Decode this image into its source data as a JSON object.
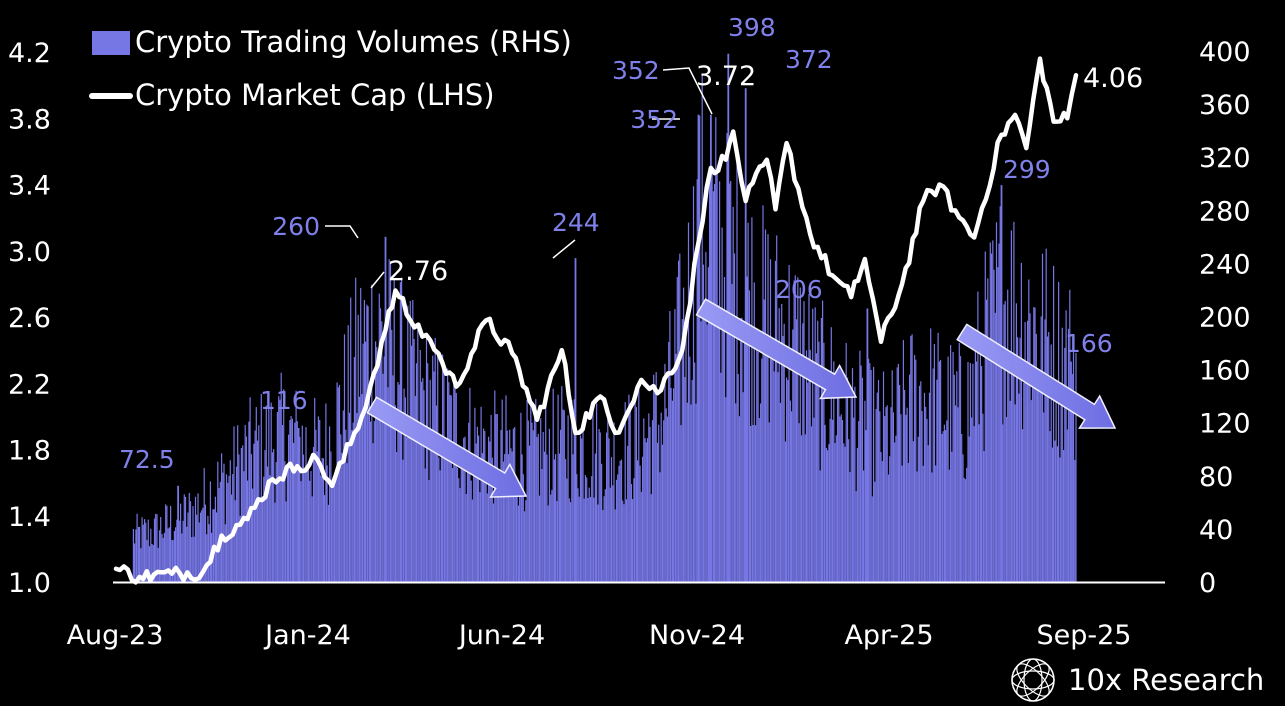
{
  "chart_data": {
    "type": "bar+line",
    "title": "",
    "legend": {
      "placement": "top-left",
      "entries": [
        {
          "label": "Crypto Trading Volumes (RHS)",
          "kind": "bar",
          "color": "#7676e4"
        },
        {
          "label": "Crypto Market Cap (LHS)",
          "kind": "line",
          "color": "#ffffff"
        }
      ]
    },
    "x_tick_labels": [
      "Aug-23",
      "Jan-24",
      "Jun-24",
      "Nov-24",
      "Apr-25",
      "Sep-25"
    ],
    "y_left": {
      "label": "",
      "range": [
        1.0,
        4.2
      ],
      "ticks": [
        "1.0",
        "1.4",
        "1.8",
        "2.2",
        "2.6",
        "3.0",
        "3.4",
        "3.8",
        "4.2"
      ]
    },
    "y_right": {
      "label": "",
      "range": [
        0,
        400
      ],
      "ticks": [
        "0",
        "40",
        "80",
        "120",
        "160",
        "200",
        "240",
        "280",
        "320",
        "360",
        "400"
      ]
    },
    "series": [
      {
        "name": "Crypto Trading Volumes (RHS)",
        "axis": "right",
        "type": "bar",
        "color": "#7676e4",
        "keypoints": [
          {
            "date": "2023-08-15",
            "value": 35
          },
          {
            "date": "2023-09-01",
            "value": 38
          },
          {
            "date": "2023-09-15",
            "value": 45
          },
          {
            "date": "2023-10-01",
            "value": 52
          },
          {
            "date": "2023-10-15",
            "value": 65
          },
          {
            "date": "2023-11-01",
            "value": 80
          },
          {
            "date": "2023-11-15",
            "value": 95
          },
          {
            "date": "2023-12-01",
            "value": 105
          },
          {
            "date": "2023-12-15",
            "value": 110
          },
          {
            "date": "2024-01-01",
            "value": 100
          },
          {
            "date": "2024-01-15",
            "value": 95
          },
          {
            "date": "2024-02-01",
            "value": 135
          },
          {
            "date": "2024-02-15",
            "value": 175
          },
          {
            "date": "2024-03-01",
            "value": 185
          },
          {
            "date": "2024-03-15",
            "value": 165
          },
          {
            "date": "2024-04-01",
            "value": 140
          },
          {
            "date": "2024-04-15",
            "value": 130
          },
          {
            "date": "2024-05-01",
            "value": 115
          },
          {
            "date": "2024-05-15",
            "value": 105
          },
          {
            "date": "2024-06-01",
            "value": 100
          },
          {
            "date": "2024-06-15",
            "value": 98
          },
          {
            "date": "2024-07-01",
            "value": 95
          },
          {
            "date": "2024-07-15",
            "value": 100
          },
          {
            "date": "2024-08-01",
            "value": 105
          },
          {
            "date": "2024-08-15",
            "value": 100
          },
          {
            "date": "2024-09-01",
            "value": 95
          },
          {
            "date": "2024-09-15",
            "value": 100
          },
          {
            "date": "2024-10-01",
            "value": 110
          },
          {
            "date": "2024-10-15",
            "value": 125
          },
          {
            "date": "2024-11-01",
            "value": 190
          },
          {
            "date": "2024-11-15",
            "value": 270
          },
          {
            "date": "2024-12-01",
            "value": 245
          },
          {
            "date": "2024-12-15",
            "value": 225
          },
          {
            "date": "2025-01-01",
            "value": 200
          },
          {
            "date": "2025-01-15",
            "value": 190
          },
          {
            "date": "2025-02-01",
            "value": 175
          },
          {
            "date": "2025-02-15",
            "value": 150
          },
          {
            "date": "2025-03-01",
            "value": 140
          },
          {
            "date": "2025-03-15",
            "value": 125
          },
          {
            "date": "2025-04-01",
            "value": 115
          },
          {
            "date": "2025-04-15",
            "value": 110
          },
          {
            "date": "2025-05-01",
            "value": 135
          },
          {
            "date": "2025-05-15",
            "value": 140
          },
          {
            "date": "2025-06-01",
            "value": 130
          },
          {
            "date": "2025-06-15",
            "value": 125
          },
          {
            "date": "2025-07-01",
            "value": 175
          },
          {
            "date": "2025-07-15",
            "value": 215
          },
          {
            "date": "2025-08-01",
            "value": 200
          },
          {
            "date": "2025-08-15",
            "value": 185
          },
          {
            "date": "2025-09-01",
            "value": 165
          },
          {
            "date": "2025-09-12",
            "value": 160
          }
        ],
        "spikes": [
          {
            "date": "2023-09-20",
            "value": 72.5
          },
          {
            "date": "2023-12-26",
            "value": 116
          },
          {
            "date": "2024-03-05",
            "value": 260
          },
          {
            "date": "2024-08-05",
            "value": 244
          },
          {
            "date": "2024-11-12",
            "value": 352
          },
          {
            "date": "2024-11-22",
            "value": 352
          },
          {
            "date": "2024-12-06",
            "value": 398
          },
          {
            "date": "2024-12-20",
            "value": 372
          },
          {
            "date": "2025-03-28",
            "value": 206
          },
          {
            "date": "2025-07-14",
            "value": 299
          },
          {
            "date": "2025-09-08",
            "value": 166
          }
        ]
      },
      {
        "name": "Crypto Market Cap (LHS)",
        "axis": "left",
        "type": "line",
        "color": "#ffffff",
        "keypoints": [
          {
            "date": "2023-08-01",
            "value": 1.08
          },
          {
            "date": "2023-08-20",
            "value": 1.03
          },
          {
            "date": "2023-09-15",
            "value": 1.05
          },
          {
            "date": "2023-10-10",
            "value": 1.06
          },
          {
            "date": "2023-10-25",
            "value": 1.28
          },
          {
            "date": "2023-11-15",
            "value": 1.38
          },
          {
            "date": "2023-12-05",
            "value": 1.62
          },
          {
            "date": "2023-12-25",
            "value": 1.7
          },
          {
            "date": "2024-01-10",
            "value": 1.74
          },
          {
            "date": "2024-01-22",
            "value": 1.58
          },
          {
            "date": "2024-02-15",
            "value": 2.0
          },
          {
            "date": "2024-03-05",
            "value": 2.52
          },
          {
            "date": "2024-03-13",
            "value": 2.76
          },
          {
            "date": "2024-03-25",
            "value": 2.58
          },
          {
            "date": "2024-04-10",
            "value": 2.46
          },
          {
            "date": "2024-04-20",
            "value": 2.32
          },
          {
            "date": "2024-05-01",
            "value": 2.18
          },
          {
            "date": "2024-05-25",
            "value": 2.58
          },
          {
            "date": "2024-06-15",
            "value": 2.38
          },
          {
            "date": "2024-07-05",
            "value": 1.98
          },
          {
            "date": "2024-07-25",
            "value": 2.4
          },
          {
            "date": "2024-08-05",
            "value": 1.9
          },
          {
            "date": "2024-08-25",
            "value": 2.12
          },
          {
            "date": "2024-09-06",
            "value": 1.9
          },
          {
            "date": "2024-09-27",
            "value": 2.22
          },
          {
            "date": "2024-10-10",
            "value": 2.14
          },
          {
            "date": "2024-10-30",
            "value": 2.4
          },
          {
            "date": "2024-11-12",
            "value": 3.05
          },
          {
            "date": "2024-11-22",
            "value": 3.5
          },
          {
            "date": "2024-12-04",
            "value": 3.55
          },
          {
            "date": "2024-12-10",
            "value": 3.72
          },
          {
            "date": "2024-12-20",
            "value": 3.3
          },
          {
            "date": "2025-01-06",
            "value": 3.55
          },
          {
            "date": "2025-01-13",
            "value": 3.25
          },
          {
            "date": "2025-01-22",
            "value": 3.65
          },
          {
            "date": "2025-02-10",
            "value": 3.1
          },
          {
            "date": "2025-02-28",
            "value": 2.85
          },
          {
            "date": "2025-03-15",
            "value": 2.72
          },
          {
            "date": "2025-03-26",
            "value": 2.95
          },
          {
            "date": "2025-04-08",
            "value": 2.45
          },
          {
            "date": "2025-04-25",
            "value": 2.8
          },
          {
            "date": "2025-05-12",
            "value": 3.3
          },
          {
            "date": "2025-05-25",
            "value": 3.4
          },
          {
            "date": "2025-06-10",
            "value": 3.2
          },
          {
            "date": "2025-06-22",
            "value": 3.08
          },
          {
            "date": "2025-07-14",
            "value": 3.7
          },
          {
            "date": "2025-07-25",
            "value": 3.82
          },
          {
            "date": "2025-08-03",
            "value": 3.62
          },
          {
            "date": "2025-08-14",
            "value": 4.16
          },
          {
            "date": "2025-08-25",
            "value": 3.78
          },
          {
            "date": "2025-09-05",
            "value": 3.8
          },
          {
            "date": "2025-09-12",
            "value": 4.06
          }
        ]
      }
    ],
    "annotations": [
      {
        "text": "72.5",
        "series": "Crypto Trading Volumes (RHS)",
        "date": "2023-09-20",
        "value": 72.5
      },
      {
        "text": "116",
        "series": "Crypto Trading Volumes (RHS)",
        "date": "2023-12-26",
        "value": 116
      },
      {
        "text": "260",
        "series": "Crypto Trading Volumes (RHS)",
        "date": "2024-03-05",
        "value": 260
      },
      {
        "text": "244",
        "series": "Crypto Trading Volumes (RHS)",
        "date": "2024-08-05",
        "value": 244
      },
      {
        "text": "352",
        "series": "Crypto Trading Volumes (RHS)",
        "date": "2024-11-12",
        "value": 352
      },
      {
        "text": "352",
        "series": "Crypto Trading Volumes (RHS)",
        "date": "2024-11-22",
        "value": 352
      },
      {
        "text": "398",
        "series": "Crypto Trading Volumes (RHS)",
        "date": "2024-12-06",
        "value": 398
      },
      {
        "text": "372",
        "series": "Crypto Trading Volumes (RHS)",
        "date": "2024-12-20",
        "value": 372
      },
      {
        "text": "206",
        "series": "Crypto Trading Volumes (RHS)",
        "date": "2025-03-28",
        "value": 206
      },
      {
        "text": "299",
        "series": "Crypto Trading Volumes (RHS)",
        "date": "2025-07-14",
        "value": 299
      },
      {
        "text": "166",
        "series": "Crypto Trading Volumes (RHS)",
        "date": "2025-09-08",
        "value": 166
      },
      {
        "text": "2.76",
        "series": "Crypto Market Cap (LHS)",
        "date": "2024-03-13",
        "value": 2.76
      },
      {
        "text": "3.72",
        "series": "Crypto Market Cap (LHS)",
        "date": "2024-12-10",
        "value": 3.72
      },
      {
        "text": "4.06",
        "series": "Crypto Market Cap (LHS)",
        "date": "2025-09-12",
        "value": 4.06
      }
    ],
    "trend_arrows": [
      {
        "from": "2024-03-15",
        "to": "2024-07-31",
        "direction": "down"
      },
      {
        "from": "2024-12-05",
        "to": "2025-03-31",
        "direction": "down"
      },
      {
        "from": "2025-07-25",
        "to": "2025-10-15",
        "direction": "down"
      }
    ],
    "grid": false
  },
  "brand": {
    "name": "10x Research",
    "icon": "globe-lattice-icon"
  }
}
